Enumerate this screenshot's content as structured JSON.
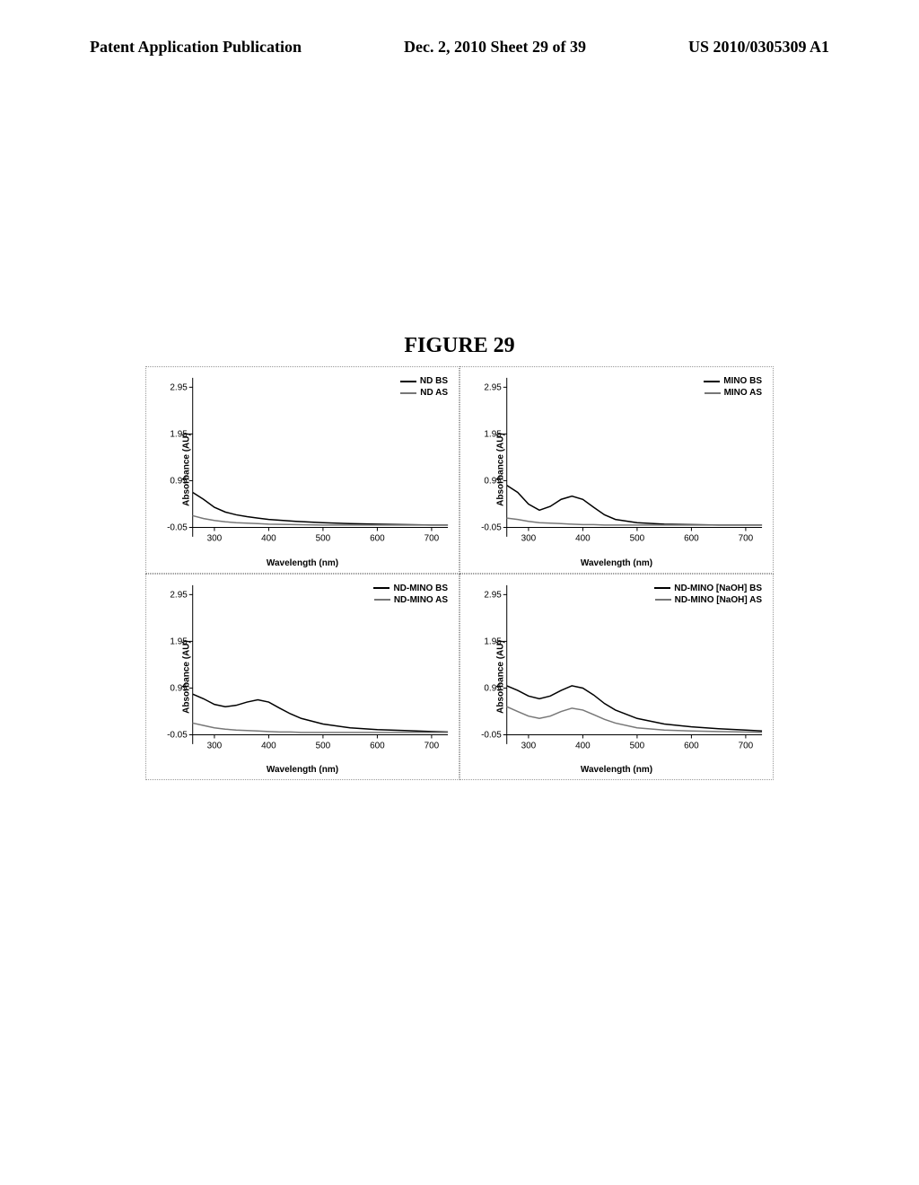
{
  "header": {
    "left": "Patent Application Publication",
    "center": "Dec. 2, 2010  Sheet 29 of 39",
    "right": "US 2010/0305309 A1"
  },
  "figure_title": "FIGURE 29",
  "chart_common": {
    "x_label": "Wavelength (nm)",
    "y_label": "Absorbance (AU)",
    "x_ticks": [
      300,
      400,
      500,
      600,
      700
    ],
    "y_ticks": [
      -0.05,
      0.95,
      1.95,
      2.95
    ],
    "xlim": [
      260,
      730
    ],
    "ylim": [
      -0.25,
      3.15
    ],
    "bg_color": "#ffffff",
    "axis_color": "#000000",
    "grid_color": "#e0e0e0",
    "tick_fontsize": 10,
    "label_fontsize": 10,
    "line_width": 1.5,
    "series_color_bs": "#000000",
    "series_color_as": "#777777"
  },
  "charts": [
    {
      "id": "nd",
      "legend": [
        "ND BS",
        "ND AS"
      ],
      "legend_colors": [
        "#000000",
        "#777777"
      ],
      "series": [
        {
          "name": "ND BS",
          "color": "#000000",
          "x": [
            260,
            280,
            300,
            320,
            340,
            360,
            380,
            400,
            450,
            500,
            550,
            600,
            650,
            700,
            730
          ],
          "y": [
            0.7,
            0.55,
            0.38,
            0.28,
            0.22,
            0.18,
            0.15,
            0.12,
            0.08,
            0.05,
            0.03,
            0.02,
            0.01,
            0.0,
            0.0
          ]
        },
        {
          "name": "ND AS",
          "color": "#777777",
          "x": [
            260,
            280,
            300,
            320,
            340,
            360,
            380,
            400,
            450,
            500,
            550,
            600,
            650,
            700,
            730
          ],
          "y": [
            0.2,
            0.14,
            0.1,
            0.07,
            0.05,
            0.04,
            0.03,
            0.02,
            0.01,
            0.0,
            0.0,
            0.0,
            0.0,
            0.0,
            0.0
          ]
        }
      ]
    },
    {
      "id": "mino",
      "legend": [
        "MINO BS",
        "MINO AS"
      ],
      "legend_colors": [
        "#000000",
        "#777777"
      ],
      "series": [
        {
          "name": "MINO BS",
          "color": "#000000",
          "x": [
            260,
            280,
            300,
            320,
            340,
            360,
            380,
            400,
            420,
            440,
            460,
            500,
            550,
            600,
            650,
            700,
            730
          ],
          "y": [
            0.85,
            0.7,
            0.45,
            0.32,
            0.4,
            0.55,
            0.62,
            0.55,
            0.38,
            0.22,
            0.12,
            0.05,
            0.02,
            0.01,
            0.0,
            0.0,
            0.0
          ]
        },
        {
          "name": "MINO AS",
          "color": "#777777",
          "x": [
            260,
            280,
            300,
            320,
            340,
            360,
            380,
            400,
            420,
            440,
            460,
            500,
            550,
            600,
            650,
            700,
            730
          ],
          "y": [
            0.15,
            0.12,
            0.08,
            0.05,
            0.04,
            0.03,
            0.02,
            0.01,
            0.01,
            0.0,
            0.0,
            0.0,
            0.0,
            0.0,
            0.0,
            0.0,
            0.0
          ]
        }
      ]
    },
    {
      "id": "nd-mino",
      "legend": [
        "ND-MINO BS",
        "ND-MINO AS"
      ],
      "legend_colors": [
        "#000000",
        "#777777"
      ],
      "series": [
        {
          "name": "ND-MINO BS",
          "color": "#000000",
          "x": [
            260,
            280,
            300,
            320,
            340,
            360,
            380,
            400,
            420,
            440,
            460,
            500,
            550,
            600,
            650,
            700,
            730
          ],
          "y": [
            0.82,
            0.72,
            0.6,
            0.55,
            0.58,
            0.65,
            0.7,
            0.65,
            0.52,
            0.4,
            0.3,
            0.18,
            0.1,
            0.06,
            0.04,
            0.02,
            0.01
          ]
        },
        {
          "name": "ND-MINO AS",
          "color": "#777777",
          "x": [
            260,
            280,
            300,
            320,
            340,
            360,
            380,
            400,
            420,
            440,
            460,
            500,
            550,
            600,
            650,
            700,
            730
          ],
          "y": [
            0.2,
            0.15,
            0.1,
            0.07,
            0.05,
            0.04,
            0.03,
            0.02,
            0.01,
            0.01,
            0.0,
            0.0,
            0.0,
            0.0,
            0.0,
            0.0,
            0.0
          ]
        }
      ]
    },
    {
      "id": "nd-mino-naoh",
      "legend": [
        "ND-MINO [NaOH] BS",
        "ND-MINO [NaOH] AS"
      ],
      "legend_colors": [
        "#000000",
        "#777777"
      ],
      "series": [
        {
          "name": "ND-MINO [NaOH] BS",
          "color": "#000000",
          "x": [
            260,
            280,
            300,
            320,
            340,
            360,
            380,
            400,
            420,
            440,
            460,
            500,
            550,
            600,
            650,
            700,
            730
          ],
          "y": [
            1.0,
            0.9,
            0.78,
            0.72,
            0.78,
            0.9,
            1.0,
            0.95,
            0.8,
            0.62,
            0.48,
            0.3,
            0.18,
            0.12,
            0.08,
            0.05,
            0.03
          ]
        },
        {
          "name": "ND-MINO [NaOH] AS",
          "color": "#777777",
          "x": [
            260,
            280,
            300,
            320,
            340,
            360,
            380,
            400,
            420,
            440,
            460,
            500,
            550,
            600,
            650,
            700,
            730
          ],
          "y": [
            0.55,
            0.45,
            0.35,
            0.3,
            0.35,
            0.45,
            0.52,
            0.48,
            0.38,
            0.28,
            0.2,
            0.1,
            0.05,
            0.03,
            0.02,
            0.01,
            0.0
          ]
        }
      ]
    }
  ]
}
